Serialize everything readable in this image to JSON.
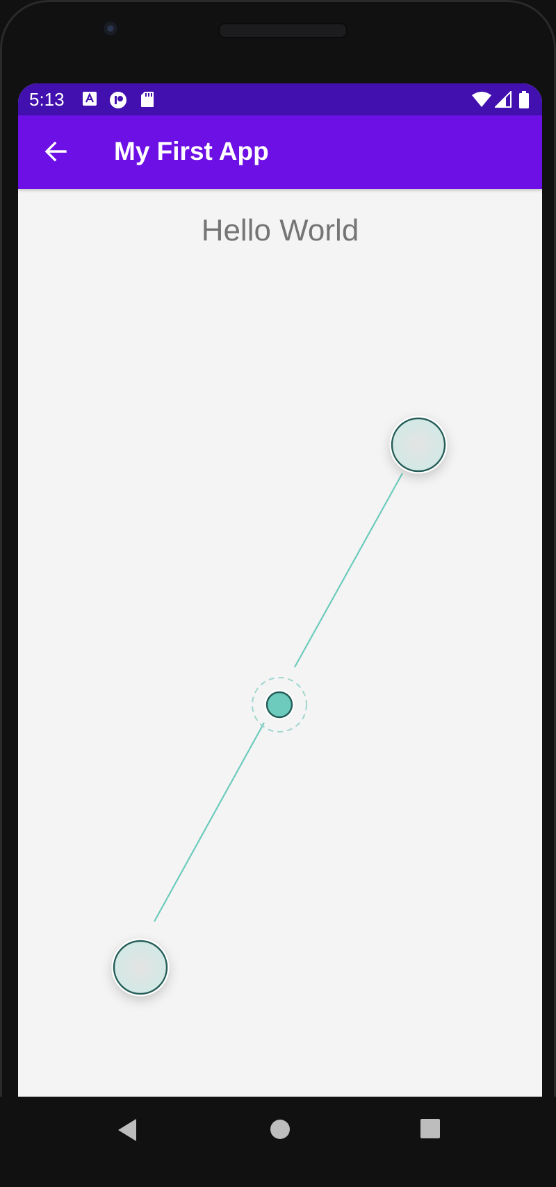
{
  "status_bar": {
    "time": "5:13",
    "left_icons": [
      "font-a-icon",
      "record-icon",
      "sd-card-icon"
    ],
    "right_icons": [
      "wifi-icon",
      "cell-signal-icon",
      "battery-icon"
    ]
  },
  "app_bar": {
    "title": "My First App",
    "nav_icon": "arrow-back-icon"
  },
  "content": {
    "text": "Hello World"
  },
  "navigation_bar": {
    "buttons": [
      "back-triangle-icon",
      "home-circle-icon",
      "recents-square-icon"
    ]
  },
  "colors": {
    "status_bar": "#4110ae",
    "app_bar": "#6c10e5",
    "background": "#f4f4f4",
    "line": "#6ccbbd",
    "handle_stroke": "#245c57",
    "center_fill": "#6ccbbd"
  }
}
